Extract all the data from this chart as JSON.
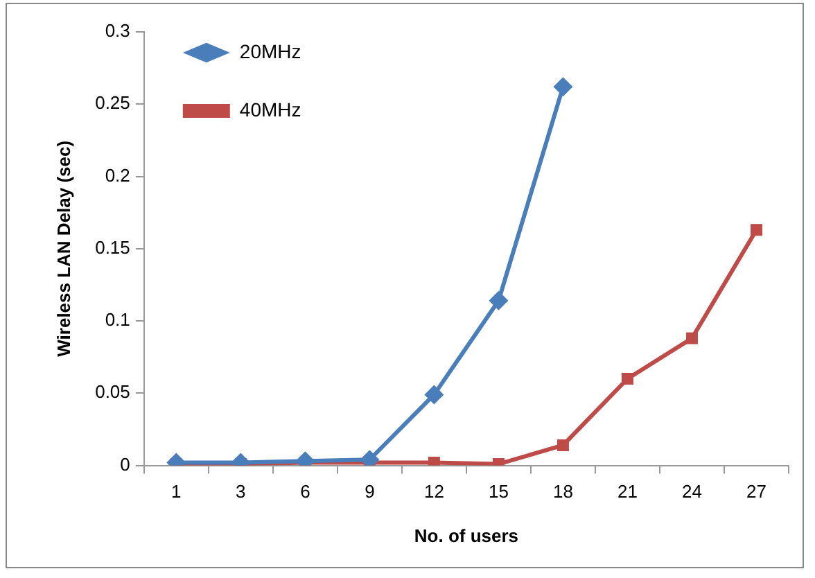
{
  "chart_data": {
    "type": "line",
    "xlabel": "No. of users",
    "ylabel": "Wireless LAN Delay (sec)",
    "categories": [
      "1",
      "3",
      "6",
      "9",
      "12",
      "15",
      "18",
      "21",
      "24",
      "27"
    ],
    "series": [
      {
        "name": "20MHz",
        "color": "#4a7ebb",
        "marker": "diamond",
        "values": [
          0.002,
          0.002,
          0.003,
          0.004,
          0.049,
          0.114,
          0.262,
          null,
          null,
          null
        ]
      },
      {
        "name": "40MHz",
        "color": "#be4b48",
        "marker": "square",
        "values": [
          0.001,
          0.001,
          0.002,
          0.002,
          0.002,
          0.001,
          0.014,
          0.06,
          0.088,
          0.163
        ]
      }
    ],
    "ylim": [
      0,
      0.3
    ],
    "yticks": [
      0,
      0.05,
      0.1,
      0.15,
      0.2,
      0.25,
      0.3
    ],
    "grid": false,
    "legend": "left",
    "line_style": "solid"
  }
}
